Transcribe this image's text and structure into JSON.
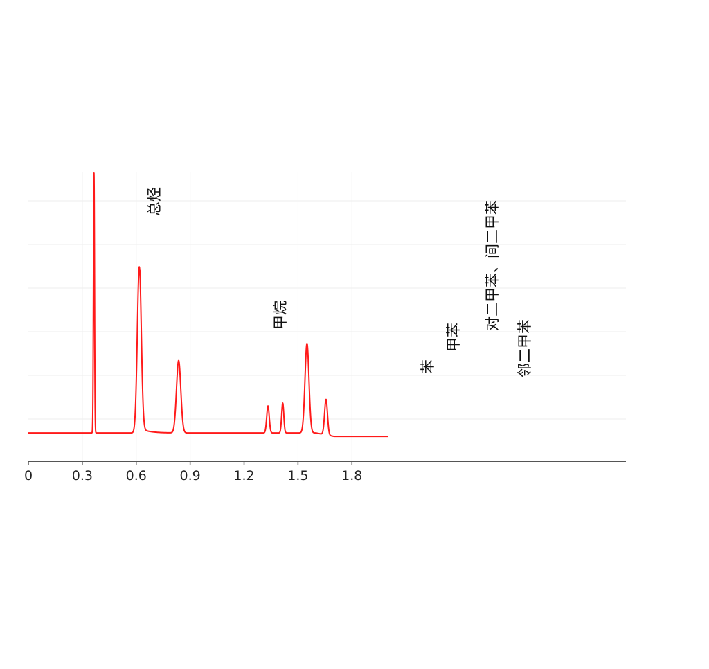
{
  "chart_data": {
    "type": "line",
    "title": "",
    "xlabel": "",
    "ylabel": "",
    "xlim": [
      0,
      2.0
    ],
    "ylim": [
      0,
      100
    ],
    "grid": true,
    "x_ticks": [
      0,
      0.3,
      0.6,
      0.9,
      1.2,
      1.5,
      1.8
    ],
    "x_tick_labels": [
      "0",
      "0.3",
      "0.6",
      "0.9",
      "1.2",
      "1.5",
      "1.8"
    ],
    "series_color": "#ff1a1a",
    "baseline": 8.5,
    "peaks": [
      {
        "x": 0.365,
        "y": 100,
        "width": 0.003,
        "label": "总烃"
      },
      {
        "x": 0.617,
        "y": 67,
        "width": 0.011,
        "label": ""
      },
      {
        "x": 0.836,
        "y": 34,
        "width": 0.012,
        "label": "甲烷"
      },
      {
        "x": 1.333,
        "y": 18,
        "width": 0.007,
        "label": "苯"
      },
      {
        "x": 1.415,
        "y": 19,
        "width": 0.006,
        "label": "甲苯"
      },
      {
        "x": 1.55,
        "y": 40,
        "width": 0.011,
        "label": "对二甲苯、间二甲苯"
      },
      {
        "x": 1.656,
        "y": 21,
        "width": 0.008,
        "label": "邻二甲苯"
      }
    ]
  }
}
